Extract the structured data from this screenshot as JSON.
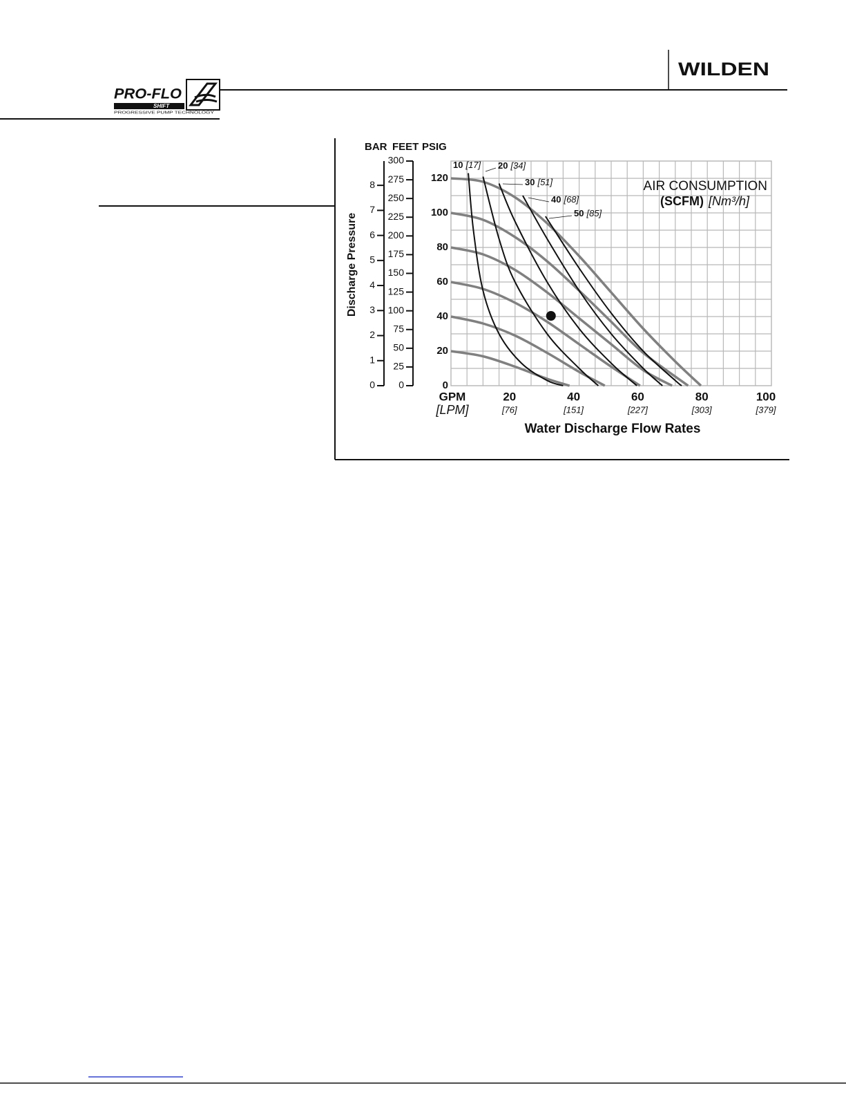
{
  "header": {
    "logo_left": "PRO-FLO",
    "logo_left_sub": "SHIFT",
    "logo_left_tagline": "PROGRESSIVE PUMP TECHNOLOGY",
    "logo_right": "WILDEN"
  },
  "chart_data": {
    "type": "line",
    "annotation_title": "AIR CONSUMPTION",
    "annotation_unit": "(SCFM)",
    "annotation_metric": "[Nm³/h]",
    "y_label": "Discharge Pressure",
    "y_unit": "PSIG",
    "x_label": "Water Discharge Flow Rates",
    "xlim": [
      0,
      100
    ],
    "ylim": [
      0,
      130
    ],
    "xticks": [
      {
        "value": 0,
        "label": "GPM"
      },
      20,
      40,
      60,
      80,
      100
    ],
    "xticks_metric": [
      "[LPM]",
      "[76]",
      "[151]",
      "[227]",
      "[303]",
      "[379]"
    ],
    "yticks": [
      0,
      20,
      40,
      60,
      80,
      100,
      120
    ],
    "grid": true,
    "bar_axis": {
      "label": "BAR",
      "lim": [
        0,
        8.97
      ],
      "ticks": [
        0,
        1,
        2,
        3,
        4,
        5,
        6,
        7,
        8
      ]
    },
    "feet_axis": {
      "label": "FEET",
      "lim": [
        0,
        300
      ],
      "ticks": [
        0,
        25,
        50,
        75,
        100,
        125,
        150,
        175,
        200,
        225,
        250,
        275,
        300
      ]
    },
    "series": [
      {
        "color": "#808080",
        "x": [
          0,
          10,
          20,
          30,
          40,
          50,
          60,
          70,
          78
        ],
        "values": [
          120,
          118,
          109,
          94,
          75,
          54,
          33,
          14,
          0
        ]
      },
      {
        "color": "#808080",
        "x": [
          0,
          10,
          20,
          30,
          40,
          50,
          60,
          74
        ],
        "values": [
          100,
          96,
          86,
          72,
          55,
          37,
          19,
          0
        ]
      },
      {
        "color": "#808080",
        "x": [
          0,
          10,
          20,
          30,
          40,
          50,
          60,
          69
        ],
        "values": [
          80,
          76,
          67,
          54,
          39,
          24,
          9,
          0
        ]
      },
      {
        "color": "#808080",
        "x": [
          0,
          10,
          20,
          30,
          40,
          50,
          59
        ],
        "values": [
          60,
          56,
          48,
          37,
          24,
          11,
          0
        ]
      },
      {
        "color": "#808080",
        "x": [
          0,
          10,
          20,
          30,
          40,
          48
        ],
        "values": [
          40,
          36,
          29,
          19,
          8,
          0
        ]
      },
      {
        "color": "#808080",
        "x": [
          0,
          10,
          20,
          30,
          37
        ],
        "values": [
          20,
          17,
          11,
          4,
          0
        ]
      },
      {
        "name": "10",
        "name_metric": "[17]",
        "color": "#111111",
        "x": [
          5.4,
          7,
          10,
          15,
          22,
          30,
          35
        ],
        "values": [
          123,
          90,
          55,
          30,
          13,
          3,
          0
        ]
      },
      {
        "name": "20",
        "name_metric": "[34]",
        "color": "#111111",
        "x": [
          10,
          15,
          20,
          30,
          40,
          46
        ],
        "values": [
          121,
          85,
          60,
          30,
          10,
          0
        ]
      },
      {
        "name": "30",
        "name_metric": "[51]",
        "color": "#111111",
        "x": [
          15,
          20,
          30,
          40,
          50,
          58
        ],
        "values": [
          117,
          95,
          60,
          33,
          13,
          0
        ]
      },
      {
        "name": "40",
        "name_metric": "[68]",
        "color": "#111111",
        "x": [
          22.4,
          30,
          40,
          50,
          60,
          66
        ],
        "values": [
          110,
          85,
          55,
          30,
          10,
          0
        ]
      },
      {
        "name": "50",
        "name_metric": "[85]",
        "color": "#111111",
        "x": [
          29.5,
          40,
          50,
          60,
          70,
          72
        ],
        "values": [
          98,
          68,
          42,
          20,
          3,
          0
        ]
      }
    ],
    "operating_point": {
      "x": 31.2,
      "y": 40.4
    }
  }
}
